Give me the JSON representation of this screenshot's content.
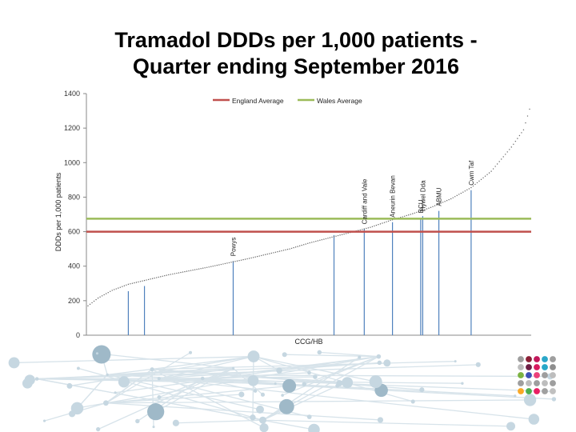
{
  "title_line1": "Tramadol DDDs per 1,000 patients -",
  "title_line2": "Quarter ending September 2016",
  "chart_data": {
    "type": "scatter",
    "title": "Tramadol DDDs per 1,000 patients - Quarter ending September 2016",
    "xlabel": "CCG/HB",
    "ylabel": "DDDs per 1,000 patients",
    "ylim": [
      0,
      1400
    ],
    "yticks": [
      0,
      200,
      400,
      600,
      800,
      1000,
      1200,
      1400
    ],
    "n_points": 220,
    "curve": {
      "y_start": 170,
      "y_end": 1310,
      "knots": [
        [
          0,
          170
        ],
        [
          5,
          215
        ],
        [
          12,
          260
        ],
        [
          20,
          295
        ],
        [
          40,
          350
        ],
        [
          60,
          395
        ],
        [
          80,
          445
        ],
        [
          100,
          500
        ],
        [
          110,
          535
        ],
        [
          120,
          565
        ],
        [
          130,
          595
        ],
        [
          140,
          625
        ],
        [
          150,
          665
        ],
        [
          160,
          700
        ],
        [
          170,
          740
        ],
        [
          180,
          790
        ],
        [
          190,
          855
        ],
        [
          200,
          950
        ],
        [
          210,
          1090
        ],
        [
          216,
          1190
        ],
        [
          219,
          1310
        ]
      ]
    },
    "reference_lines": [
      {
        "name": "England Average",
        "value": 600,
        "color": "#c0504d"
      },
      {
        "name": "Wales Average",
        "value": 675,
        "color": "#9bbb59"
      }
    ],
    "highlighted": [
      {
        "label": "",
        "rank": 20,
        "value": 255
      },
      {
        "label": "",
        "rank": 28,
        "value": 285
      },
      {
        "label": "Powys",
        "rank": 72,
        "value": 430
      },
      {
        "label": "",
        "rank": 122,
        "value": 580
      },
      {
        "label": "Cardiff and Vale",
        "rank": 137,
        "value": 615
      },
      {
        "label": "Aneurin Bevan",
        "rank": 151,
        "value": 655
      },
      {
        "label": "BCU",
        "rank": 165,
        "value": 680
      },
      {
        "label": "Hywel Dda",
        "rank": 166,
        "value": 690
      },
      {
        "label": "ABMU",
        "rank": 174,
        "value": 720
      },
      {
        "label": "Cwm Taf",
        "rank": 190,
        "value": 840
      }
    ],
    "colors": {
      "points": "#666666",
      "bars": "#4f81bd",
      "axis": "#888888"
    },
    "legend_position": "top-center",
    "grid": false
  }
}
